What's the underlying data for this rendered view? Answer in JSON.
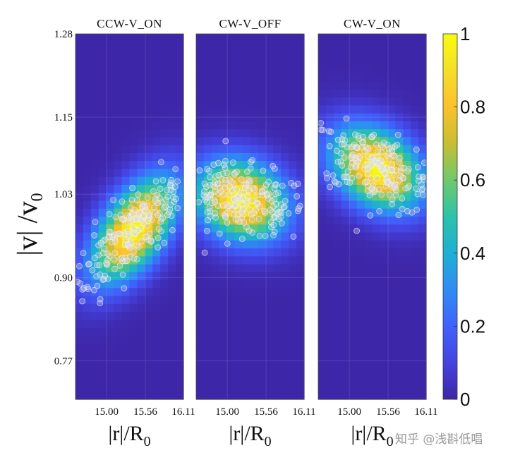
{
  "chart_data": {
    "type": "heatmap",
    "panels": [
      {
        "title": "CCW-V_ON",
        "center": {
          "x": 15.4,
          "y": 0.975
        },
        "sigma": {
          "x": 0.3,
          "y": 0.033
        },
        "tilt": 0.045
      },
      {
        "title": "CW-V_OFF",
        "center": {
          "x": 15.2,
          "y": 1.02
        },
        "sigma": {
          "x": 0.32,
          "y": 0.03
        },
        "tilt": -0.01
      },
      {
        "title": "CW-V_ON",
        "center": {
          "x": 15.4,
          "y": 1.07
        },
        "sigma": {
          "x": 0.32,
          "y": 0.03
        },
        "tilt": -0.02
      }
    ],
    "x_ticks": [
      "15.00",
      "15.56",
      "16.11"
    ],
    "x_tick_values": [
      15.0,
      15.56,
      16.11
    ],
    "xlim": [
      14.55,
      16.11
    ],
    "y_ticks": [
      "1.28",
      "1.15",
      "1.03",
      "0.90",
      "0.77"
    ],
    "y_tick_values": [
      1.28,
      1.15,
      1.03,
      0.9,
      0.77
    ],
    "ylim": [
      0.71,
      1.28
    ],
    "colorbar": {
      "ticks": [
        "0",
        "0.2",
        "0.4",
        "0.6",
        "0.8",
        "1"
      ],
      "tick_values": [
        0,
        0.2,
        0.4,
        0.6,
        0.8,
        1
      ],
      "range": [
        0,
        1
      ],
      "colors": [
        "#3e26a8",
        "#4443e0",
        "#4063fb",
        "#2f8cf4",
        "#1eafd3",
        "#2bc3aa",
        "#70c96c",
        "#c7be32",
        "#fbc12c",
        "#f5df29",
        "#f9fb0e"
      ]
    },
    "xlabel_main": "|r|/R",
    "xlabel_sub": "0",
    "ylabel_main": "|v| /v",
    "ylabel_sub": "0"
  },
  "watermark": "知乎 @浅斟低唱"
}
